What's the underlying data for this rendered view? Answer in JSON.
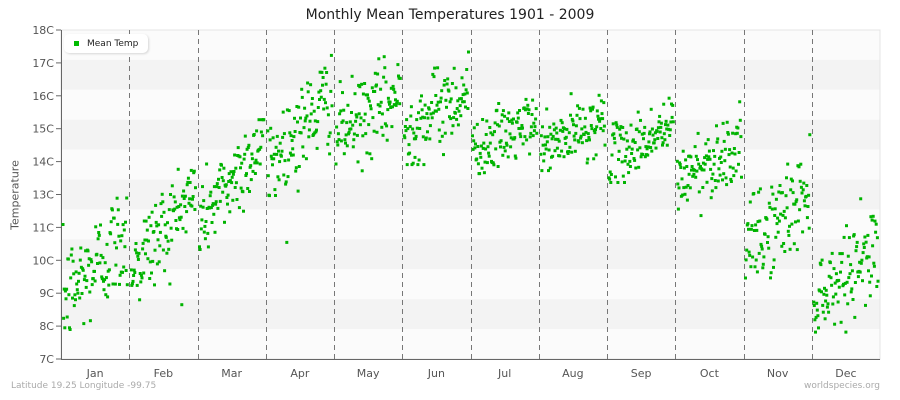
{
  "title": "Monthly Mean Temperatures 1901 - 2009",
  "footer": {
    "location": "Latitude 19.25 Longitude -99.75",
    "source": "worldspecies.org"
  },
  "legend": {
    "label": "Mean Temp",
    "color": "#00bb00"
  },
  "colors": {
    "point": "#00b300",
    "band_light": "#fbfbfb",
    "band_dark": "#f3f3f3",
    "axis": "#666666",
    "grid_dash": "#777777"
  },
  "chart_data": {
    "type": "scatter",
    "title": "Monthly Mean Temperatures 1901 - 2009",
    "xlabel": "",
    "ylabel": "Temperature",
    "ylim": [
      7,
      18
    ],
    "y_tick_labels": [
      "18C",
      "17C",
      "16C",
      "15C",
      "14C",
      "13C",
      "11C",
      "10C",
      "9C",
      "8C",
      "7C"
    ],
    "categories": [
      "Jan",
      "Feb",
      "Mar",
      "Apr",
      "May",
      "Jun",
      "Jul",
      "Aug",
      "Sep",
      "Oct",
      "Nov",
      "Dec"
    ],
    "legend": [
      "Mean Temp"
    ],
    "legend_position": "top-left",
    "grid": "dashed vertical month separators, alternating horizontal bands",
    "points_per_month": 109,
    "series": [
      {
        "name": "Mean Temp",
        "month_clusters": [
          {
            "month": "Jan",
            "start": 9.0,
            "end": 11.2,
            "sd": 0.9,
            "min": 7.2,
            "max": 13.3
          },
          {
            "month": "Feb",
            "start": 10.0,
            "end": 12.6,
            "sd": 0.8,
            "min": 8.4,
            "max": 14.8
          },
          {
            "month": "Mar",
            "start": 11.6,
            "end": 14.3,
            "sd": 0.7,
            "min": 9.6,
            "max": 15.0
          },
          {
            "month": "Apr",
            "start": 13.5,
            "end": 15.8,
            "sd": 0.8,
            "min": 10.9,
            "max": 17.6
          },
          {
            "month": "May",
            "start": 14.5,
            "end": 15.8,
            "sd": 0.7,
            "min": 12.9,
            "max": 17.4
          },
          {
            "month": "Jun",
            "start": 14.6,
            "end": 16.0,
            "sd": 0.7,
            "min": 13.5,
            "max": 18.0
          },
          {
            "month": "Jul",
            "start": 14.0,
            "end": 14.9,
            "sd": 0.5,
            "min": 13.2,
            "max": 16.9
          },
          {
            "month": "Aug",
            "start": 14.0,
            "end": 15.0,
            "sd": 0.5,
            "min": 13.3,
            "max": 16.5
          },
          {
            "month": "Sep",
            "start": 13.7,
            "end": 14.8,
            "sd": 0.5,
            "min": 12.9,
            "max": 16.0
          },
          {
            "month": "Oct",
            "start": 13.0,
            "end": 14.2,
            "sd": 0.6,
            "min": 10.5,
            "max": 15.6
          },
          {
            "month": "Nov",
            "start": 10.6,
            "end": 12.6,
            "sd": 0.8,
            "min": 8.4,
            "max": 14.5
          },
          {
            "month": "Dec",
            "start": 9.0,
            "end": 10.8,
            "sd": 0.7,
            "min": 7.9,
            "max": 12.8
          }
        ]
      }
    ]
  }
}
